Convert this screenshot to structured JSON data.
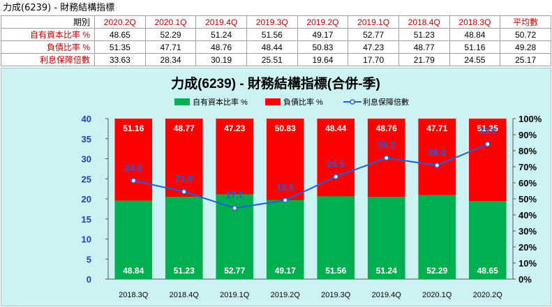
{
  "page": {
    "title": "力成(6239) - 財務結構指標"
  },
  "table": {
    "period_label": "期別",
    "periods": [
      "2020.2Q",
      "2020.1Q",
      "2019.4Q",
      "2019.3Q",
      "2019.2Q",
      "2019.1Q",
      "2018.4Q",
      "2018.3Q"
    ],
    "avg_label": "平均數",
    "rows": [
      {
        "label": "自有資本比率 %",
        "values": [
          "48.65",
          "52.29",
          "51.24",
          "51.56",
          "49.17",
          "52.77",
          "51.23",
          "48.84"
        ],
        "avg": "50.72"
      },
      {
        "label": "負債比率 %",
        "values": [
          "51.35",
          "47.71",
          "48.76",
          "48.44",
          "50.83",
          "47.23",
          "48.77",
          "51.16"
        ],
        "avg": "49.28"
      },
      {
        "label": "利息保障倍數",
        "values": [
          "33.63",
          "28.34",
          "30.19",
          "25.51",
          "19.64",
          "17.70",
          "21.79",
          "24.55"
        ],
        "avg": "25.17"
      }
    ]
  },
  "chart_data": {
    "type": "bar",
    "stacked": true,
    "title": "力成(6239) - 財務結構指標(合併-季)",
    "categories": [
      "2018.3Q",
      "2018.4Q",
      "2019.1Q",
      "2019.2Q",
      "2019.3Q",
      "2019.4Q",
      "2020.1Q",
      "2020.2Q"
    ],
    "series": [
      {
        "name": "自有資本比率 %",
        "type": "bar",
        "axis": "right",
        "color": "#00b050",
        "values": [
          48.84,
          51.23,
          52.77,
          49.17,
          51.56,
          51.24,
          52.29,
          48.65
        ],
        "labels": [
          "48.84",
          "51.23",
          "52.77",
          "49.17",
          "51.56",
          "51.24",
          "52.29",
          "48.65"
        ]
      },
      {
        "name": "負債比率 %",
        "type": "bar",
        "axis": "right",
        "color": "#ff0000",
        "values": [
          51.16,
          48.77,
          47.23,
          50.83,
          48.44,
          48.76,
          47.71,
          51.35
        ],
        "labels": [
          "51.16",
          "48.77",
          "47.23",
          "50.83",
          "48.44",
          "48.76",
          "47.71",
          "51.35"
        ]
      },
      {
        "name": "利息保障倍數",
        "type": "line",
        "axis": "left",
        "color": "#1f5fe0",
        "values": [
          24.55,
          21.79,
          17.7,
          19.64,
          25.51,
          30.19,
          28.34,
          33.63
        ],
        "labels": [
          "24.6",
          "21.8",
          "17.7",
          "19.6",
          "25.5",
          "30.2",
          "28.3",
          "33.6"
        ]
      }
    ],
    "y_left": {
      "min": 0,
      "max": 40,
      "ticks": [
        "0",
        "5",
        "10",
        "15",
        "20",
        "25",
        "30",
        "35",
        "40"
      ],
      "color": "#1f3fbf"
    },
    "y_right": {
      "min": 0,
      "max": 100,
      "ticks": [
        "0%",
        "10%",
        "20%",
        "30%",
        "40%",
        "50%",
        "60%",
        "70%",
        "80%",
        "90%",
        "100%"
      ],
      "color": "#000000"
    },
    "legend_position": "top",
    "grid": false
  }
}
